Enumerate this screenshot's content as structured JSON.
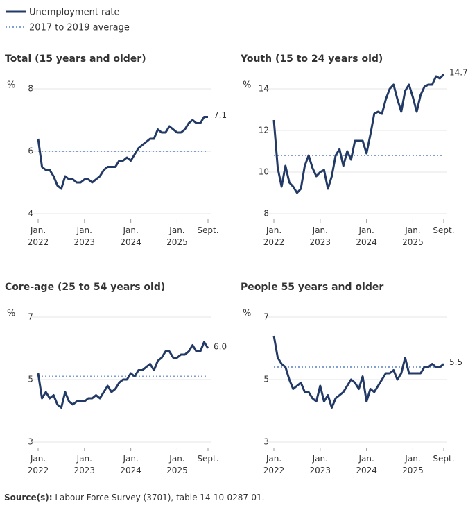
{
  "legend": {
    "series": [
      {
        "name": "Unemployment rate",
        "color": "#233a66",
        "dash": false
      },
      {
        "name": "2017 to 2019 average",
        "color": "#7f9fd3",
        "dash": true
      }
    ]
  },
  "chart_data": [
    {
      "type": "line",
      "title": "Total (15 years and older)",
      "y_label": "%",
      "categories": [
        "Jan. 2022",
        null,
        null,
        null,
        null,
        null,
        null,
        null,
        null,
        null,
        null,
        null,
        "Jan. 2023",
        null,
        null,
        null,
        null,
        null,
        null,
        null,
        null,
        null,
        null,
        null,
        "Jan. 2024",
        null,
        null,
        null,
        null,
        null,
        null,
        null,
        null,
        null,
        null,
        null,
        "Jan. 2025",
        null,
        null,
        null,
        null,
        null,
        null,
        null,
        "Sept."
      ],
      "ylim": [
        4,
        8
      ],
      "yticks": [
        4,
        6,
        8
      ],
      "grid": true,
      "average": 6.0,
      "values": [
        6.4,
        5.5,
        5.4,
        5.4,
        5.2,
        4.9,
        4.8,
        5.2,
        5.1,
        5.1,
        5.0,
        5.0,
        5.1,
        5.1,
        5.0,
        5.1,
        5.2,
        5.4,
        5.5,
        5.5,
        5.5,
        5.7,
        5.7,
        5.8,
        5.7,
        5.9,
        6.1,
        6.2,
        6.3,
        6.4,
        6.4,
        6.7,
        6.6,
        6.6,
        6.8,
        6.7,
        6.6,
        6.6,
        6.7,
        6.9,
        7.0,
        6.9,
        6.9,
        7.1,
        7.1
      ],
      "value_labels": [
        null,
        null,
        null,
        null,
        null,
        null,
        null,
        null,
        null,
        null,
        null,
        null,
        null,
        null,
        null,
        null,
        null,
        null,
        null,
        null,
        null,
        null,
        null,
        null,
        null,
        null,
        null,
        null,
        null,
        null,
        null,
        null,
        null,
        null,
        null,
        null,
        null,
        null,
        null,
        null,
        null,
        null,
        null,
        null,
        "7.1"
      ]
    },
    {
      "type": "line",
      "title": "Youth (15 to 24 years old)",
      "y_label": "%",
      "categories": [
        "Jan. 2022",
        null,
        null,
        null,
        null,
        null,
        null,
        null,
        null,
        null,
        null,
        null,
        "Jan. 2023",
        null,
        null,
        null,
        null,
        null,
        null,
        null,
        null,
        null,
        null,
        null,
        "Jan. 2024",
        null,
        null,
        null,
        null,
        null,
        null,
        null,
        null,
        null,
        null,
        null,
        "Jan. 2025",
        null,
        null,
        null,
        null,
        null,
        null,
        null,
        "Sept."
      ],
      "ylim": [
        8,
        14
      ],
      "yticks": [
        8,
        10,
        12,
        14
      ],
      "grid": true,
      "average": 10.8,
      "values": [
        12.5,
        10.2,
        9.3,
        10.3,
        9.5,
        9.3,
        9.0,
        9.2,
        10.3,
        10.8,
        10.2,
        9.8,
        10.0,
        10.1,
        9.2,
        9.8,
        10.8,
        11.1,
        10.3,
        11.0,
        10.6,
        11.5,
        11.5,
        11.5,
        10.9,
        11.8,
        12.8,
        12.9,
        12.8,
        13.5,
        14.0,
        14.2,
        13.5,
        12.9,
        13.9,
        14.2,
        13.6,
        12.9,
        13.7,
        14.1,
        14.2,
        14.2,
        14.6,
        14.5,
        14.7
      ],
      "value_labels": [
        null,
        null,
        null,
        null,
        null,
        null,
        null,
        null,
        null,
        null,
        null,
        null,
        null,
        null,
        null,
        null,
        null,
        null,
        null,
        null,
        null,
        null,
        null,
        null,
        null,
        null,
        null,
        null,
        null,
        null,
        null,
        null,
        null,
        null,
        null,
        null,
        null,
        null,
        null,
        null,
        null,
        null,
        null,
        null,
        "14.7"
      ]
    },
    {
      "type": "line",
      "title": "Core-age (25 to 54 years old)",
      "y_label": "%",
      "categories": [
        "Jan. 2022",
        null,
        null,
        null,
        null,
        null,
        null,
        null,
        null,
        null,
        null,
        null,
        "Jan. 2023",
        null,
        null,
        null,
        null,
        null,
        null,
        null,
        null,
        null,
        null,
        null,
        "Jan. 2024",
        null,
        null,
        null,
        null,
        null,
        null,
        null,
        null,
        null,
        null,
        null,
        "Jan. 2025",
        null,
        null,
        null,
        null,
        null,
        null,
        null,
        "Sept."
      ],
      "ylim": [
        3,
        7
      ],
      "yticks": [
        3,
        5,
        7
      ],
      "grid": true,
      "average": 5.1,
      "values": [
        5.2,
        4.4,
        4.6,
        4.4,
        4.5,
        4.2,
        4.1,
        4.6,
        4.3,
        4.2,
        4.3,
        4.3,
        4.3,
        4.4,
        4.4,
        4.5,
        4.4,
        4.6,
        4.8,
        4.6,
        4.7,
        4.9,
        5.0,
        5.0,
        5.2,
        5.1,
        5.3,
        5.3,
        5.4,
        5.5,
        5.3,
        5.6,
        5.7,
        5.9,
        5.9,
        5.7,
        5.7,
        5.8,
        5.8,
        5.9,
        6.1,
        5.9,
        5.9,
        6.2,
        6.0
      ],
      "value_labels": [
        null,
        null,
        null,
        null,
        null,
        null,
        null,
        null,
        null,
        null,
        null,
        null,
        null,
        null,
        null,
        null,
        null,
        null,
        null,
        null,
        null,
        null,
        null,
        null,
        null,
        null,
        null,
        null,
        null,
        null,
        null,
        null,
        null,
        null,
        null,
        null,
        null,
        null,
        null,
        null,
        null,
        null,
        null,
        null,
        "6.0"
      ]
    },
    {
      "type": "line",
      "title": "People 55 years and older",
      "y_label": "%",
      "categories": [
        "Jan. 2022",
        null,
        null,
        null,
        null,
        null,
        null,
        null,
        null,
        null,
        null,
        null,
        "Jan. 2023",
        null,
        null,
        null,
        null,
        null,
        null,
        null,
        null,
        null,
        null,
        null,
        "Jan. 2024",
        null,
        null,
        null,
        null,
        null,
        null,
        null,
        null,
        null,
        null,
        null,
        "Jan. 2025",
        null,
        null,
        null,
        null,
        null,
        null,
        null,
        "Sept."
      ],
      "ylim": [
        3,
        7
      ],
      "yticks": [
        3,
        5,
        7
      ],
      "grid": true,
      "average": 5.4,
      "values": [
        6.4,
        5.7,
        5.5,
        5.4,
        5.0,
        4.7,
        4.8,
        4.9,
        4.6,
        4.6,
        4.4,
        4.3,
        4.8,
        4.3,
        4.5,
        4.1,
        4.4,
        4.5,
        4.6,
        4.8,
        5.0,
        4.9,
        4.7,
        5.1,
        4.3,
        4.7,
        4.6,
        4.8,
        5.0,
        5.2,
        5.2,
        5.3,
        5.0,
        5.2,
        5.7,
        5.2,
        5.2,
        5.2,
        5.2,
        5.4,
        5.4,
        5.5,
        5.4,
        5.4,
        5.5
      ],
      "value_labels": [
        null,
        null,
        null,
        null,
        null,
        null,
        null,
        null,
        null,
        null,
        null,
        null,
        null,
        null,
        null,
        null,
        null,
        null,
        null,
        null,
        null,
        null,
        null,
        null,
        null,
        null,
        null,
        null,
        null,
        null,
        null,
        null,
        null,
        null,
        null,
        null,
        null,
        null,
        null,
        null,
        null,
        null,
        null,
        null,
        "5.5"
      ]
    }
  ],
  "source": {
    "label": "Source(s):",
    "text": "Labour Force Survey (3701), table 14-10-0287-01."
  }
}
